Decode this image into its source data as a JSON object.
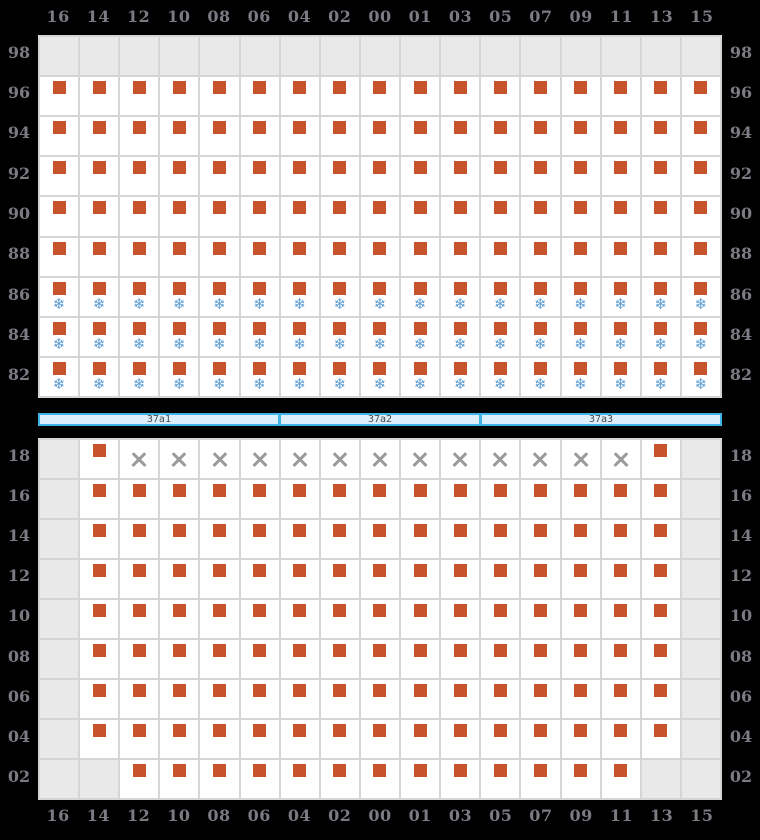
{
  "colors": {
    "background": "#000000",
    "label_text": "#7b7b83",
    "cell_white": "#ffffff",
    "cell_gray_empty": "#e9e9e9",
    "grid_line": "#d5d5d5",
    "square_orange": "#c7532c",
    "snowflake_blue": "#5b9bd2",
    "x_gray": "#9b9b9b",
    "bar_border": "#3fb2e6",
    "bar_fill": "#dceffb",
    "bar_text": "#4a4a4a"
  },
  "icons": {
    "square": "orange-booking-square",
    "snowflake": "❄",
    "x": "✕"
  },
  "columns": [
    "16",
    "14",
    "12",
    "10",
    "08",
    "06",
    "04",
    "02",
    "00",
    "01",
    "03",
    "05",
    "07",
    "09",
    "11",
    "13",
    "15"
  ],
  "section_bar": {
    "segments": [
      {
        "label": "37a1",
        "span": 6
      },
      {
        "label": "37a2",
        "span": 5
      },
      {
        "label": "37a3",
        "span": 6
      }
    ]
  },
  "upper_grid": {
    "rows": [
      {
        "label": "98",
        "cells": [
          "empty",
          "empty",
          "empty",
          "empty",
          "empty",
          "empty",
          "empty",
          "empty",
          "empty",
          "empty",
          "empty",
          "empty",
          "empty",
          "empty",
          "empty",
          "empty",
          "empty"
        ]
      },
      {
        "label": "96",
        "cells": [
          "square",
          "square",
          "square",
          "square",
          "square",
          "square",
          "square",
          "square",
          "square",
          "square",
          "square",
          "square",
          "square",
          "square",
          "square",
          "square",
          "square"
        ]
      },
      {
        "label": "94",
        "cells": [
          "square",
          "square",
          "square",
          "square",
          "square",
          "square",
          "square",
          "square",
          "square",
          "square",
          "square",
          "square",
          "square",
          "square",
          "square",
          "square",
          "square"
        ]
      },
      {
        "label": "92",
        "cells": [
          "square",
          "square",
          "square",
          "square",
          "square",
          "square",
          "square",
          "square",
          "square",
          "square",
          "square",
          "square",
          "square",
          "square",
          "square",
          "square",
          "square"
        ]
      },
      {
        "label": "90",
        "cells": [
          "square",
          "square",
          "square",
          "square",
          "square",
          "square",
          "square",
          "square",
          "square",
          "square",
          "square",
          "square",
          "square",
          "square",
          "square",
          "square",
          "square"
        ]
      },
      {
        "label": "88",
        "cells": [
          "square",
          "square",
          "square",
          "square",
          "square",
          "square",
          "square",
          "square",
          "square",
          "square",
          "square",
          "square",
          "square",
          "square",
          "square",
          "square",
          "square"
        ]
      },
      {
        "label": "86",
        "cells": [
          "square+snow",
          "square+snow",
          "square+snow",
          "square+snow",
          "square+snow",
          "square+snow",
          "square+snow",
          "square+snow",
          "square+snow",
          "square+snow",
          "square+snow",
          "square+snow",
          "square+snow",
          "square+snow",
          "square+snow",
          "square+snow",
          "square+snow"
        ]
      },
      {
        "label": "84",
        "cells": [
          "square+snow",
          "square+snow",
          "square+snow",
          "square+snow",
          "square+snow",
          "square+snow",
          "square+snow",
          "square+snow",
          "square+snow",
          "square+snow",
          "square+snow",
          "square+snow",
          "square+snow",
          "square+snow",
          "square+snow",
          "square+snow",
          "square+snow"
        ]
      },
      {
        "label": "82",
        "cells": [
          "square+snow",
          "square+snow",
          "square+snow",
          "square+snow",
          "square+snow",
          "square+snow",
          "square+snow",
          "square+snow",
          "square+snow",
          "square+snow",
          "square+snow",
          "square+snow",
          "square+snow",
          "square+snow",
          "square+snow",
          "square+snow",
          "square+snow"
        ]
      }
    ]
  },
  "lower_grid": {
    "rows": [
      {
        "label": "18",
        "cells": [
          "empty",
          "square",
          "x",
          "x",
          "x",
          "x",
          "x",
          "x",
          "x",
          "x",
          "x",
          "x",
          "x",
          "x",
          "x",
          "square",
          "empty"
        ]
      },
      {
        "label": "16",
        "cells": [
          "empty",
          "square",
          "square",
          "square",
          "square",
          "square",
          "square",
          "square",
          "square",
          "square",
          "square",
          "square",
          "square",
          "square",
          "square",
          "square",
          "empty"
        ]
      },
      {
        "label": "14",
        "cells": [
          "empty",
          "square",
          "square",
          "square",
          "square",
          "square",
          "square",
          "square",
          "square",
          "square",
          "square",
          "square",
          "square",
          "square",
          "square",
          "square",
          "empty"
        ]
      },
      {
        "label": "12",
        "cells": [
          "empty",
          "square",
          "square",
          "square",
          "square",
          "square",
          "square",
          "square",
          "square",
          "square",
          "square",
          "square",
          "square",
          "square",
          "square",
          "square",
          "empty"
        ]
      },
      {
        "label": "10",
        "cells": [
          "empty",
          "square",
          "square",
          "square",
          "square",
          "square",
          "square",
          "square",
          "square",
          "square",
          "square",
          "square",
          "square",
          "square",
          "square",
          "square",
          "empty"
        ]
      },
      {
        "label": "08",
        "cells": [
          "empty",
          "square",
          "square",
          "square",
          "square",
          "square",
          "square",
          "square",
          "square",
          "square",
          "square",
          "square",
          "square",
          "square",
          "square",
          "square",
          "empty"
        ]
      },
      {
        "label": "06",
        "cells": [
          "empty",
          "square",
          "square",
          "square",
          "square",
          "square",
          "square",
          "square",
          "square",
          "square",
          "square",
          "square",
          "square",
          "square",
          "square",
          "square",
          "empty"
        ]
      },
      {
        "label": "04",
        "cells": [
          "empty",
          "square",
          "square",
          "square",
          "square",
          "square",
          "square",
          "square",
          "square",
          "square",
          "square",
          "square",
          "square",
          "square",
          "square",
          "square",
          "empty"
        ]
      },
      {
        "label": "02",
        "cells": [
          "empty",
          "empty",
          "square",
          "square",
          "square",
          "square",
          "square",
          "square",
          "square",
          "square",
          "square",
          "square",
          "square",
          "square",
          "square",
          "empty",
          "empty"
        ]
      }
    ]
  }
}
